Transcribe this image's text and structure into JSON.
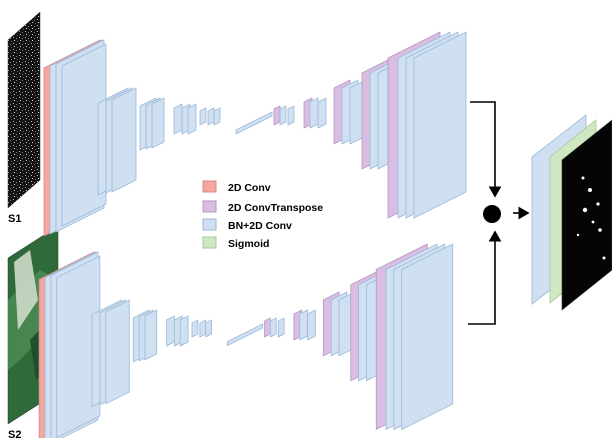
{
  "labels": {
    "s1": "S1",
    "s2": "S2"
  },
  "legend": [
    {
      "key": "conv",
      "label": "2D Conv",
      "color": "#f4a6a0",
      "edge": "#d98a84"
    },
    {
      "key": "convt",
      "label": "2D ConvTranspose",
      "color": "#d9bde3",
      "edge": "#b497c4"
    },
    {
      "key": "bnconv",
      "label": "BN+2D Conv",
      "color": "#cfe0f2",
      "edge": "#9db8d6"
    },
    {
      "key": "sigmoid",
      "label": "Sigmoid",
      "color": "#cfe8c2",
      "edge": "#a6c998"
    }
  ],
  "colors": {
    "arrow": "#000000",
    "node": "#000000"
  },
  "inputs": [
    {
      "name": "s1",
      "description_icon": "sar-image"
    },
    {
      "name": "s2",
      "description_icon": "optical-image"
    }
  ],
  "output": {
    "icon": "binary-mask-image"
  }
}
